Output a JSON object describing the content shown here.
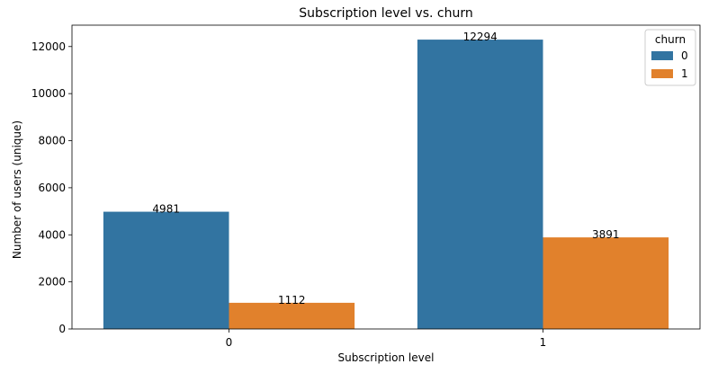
{
  "chart_data": {
    "type": "bar",
    "title": "Subscription level vs. churn",
    "xlabel": "Subscription level",
    "ylabel": "Number of users (unique)",
    "categories": [
      "0",
      "1"
    ],
    "series": [
      {
        "name": "0",
        "values": [
          4981,
          12294
        ],
        "color": "#3274a1"
      },
      {
        "name": "1",
        "values": [
          1112,
          3891
        ],
        "color": "#e1812c"
      }
    ],
    "ylim": [
      0,
      12908
    ],
    "yticks": [
      0,
      2000,
      4000,
      6000,
      8000,
      10000,
      12000
    ],
    "grid": false,
    "legend": {
      "title": "churn",
      "placement": "top-right"
    }
  }
}
